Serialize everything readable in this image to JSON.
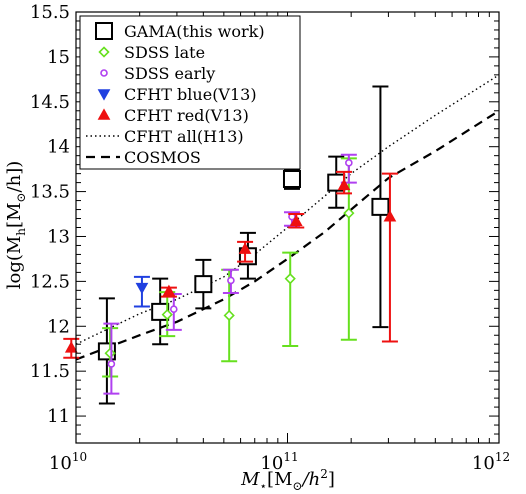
{
  "chart_data": {
    "type": "scatter",
    "xlabel_main": "M",
    "xlabel_sub": "⋆",
    "xlabel_unit_pre": "[M",
    "xlabel_unit_sub": "⊙",
    "xlabel_unit_mid": "/h",
    "xlabel_unit_sup": "2",
    "xlabel_unit_post": "]",
    "ylabel_pre": "log(M",
    "ylabel_sub": "h",
    "ylabel_unit_pre": "[M",
    "ylabel_unit_sub": "⊙",
    "ylabel_unit_post": "/h])",
    "x_scale": "log",
    "xlim": [
      10000000000.0,
      1000000000000.0
    ],
    "ylim": [
      10.7,
      15.5
    ],
    "x_ticks": [
      {
        "value": 10000000000.0,
        "base": "10",
        "exp": "10"
      },
      {
        "value": 100000000000.0,
        "base": "10",
        "exp": "11"
      },
      {
        "value": 1000000000000.0,
        "base": "10",
        "exp": "12"
      }
    ],
    "y_ticks": [
      "11",
      "11.5",
      "12",
      "12.5",
      "13",
      "13.5",
      "14",
      "14.5",
      "15",
      "15.5"
    ],
    "legend_position": "top-left",
    "series": [
      {
        "name": "GAMA(this work)",
        "marker": "square",
        "color": "#000000",
        "points": [
          {
            "x": 14000000000.0,
            "y": 11.72,
            "ylo": 11.14,
            "yhi": 12.31
          },
          {
            "x": 25000000000.0,
            "y": 12.16,
            "ylo": 11.8,
            "yhi": 12.53
          },
          {
            "x": 40000000000.0,
            "y": 12.47,
            "ylo": 12.2,
            "yhi": 12.74
          },
          {
            "x": 65000000000.0,
            "y": 12.78,
            "ylo": 12.53,
            "yhi": 13.04
          },
          {
            "x": 105000000000.0,
            "y": 13.64,
            "ylo": 13.53,
            "yhi": 13.75
          },
          {
            "x": 170000000000.0,
            "y": 13.6,
            "ylo": 13.32,
            "yhi": 13.89
          },
          {
            "x": 275000000000.0,
            "y": 13.33,
            "ylo": 11.99,
            "yhi": 14.67
          }
        ]
      },
      {
        "name": "SDSS late",
        "marker": "diamond",
        "color": "#66e01e",
        "points": [
          {
            "x": 14500000000.0,
            "y": 11.7,
            "ylo": 11.44,
            "yhi": 11.98
          },
          {
            "x": 27000000000.0,
            "y": 12.13,
            "ylo": 11.89,
            "yhi": 12.38
          },
          {
            "x": 53000000000.0,
            "y": 12.12,
            "ylo": 11.61,
            "yhi": 12.63
          },
          {
            "x": 103000000000.0,
            "y": 12.53,
            "ylo": 11.78,
            "yhi": 12.82
          },
          {
            "x": 195000000000.0,
            "y": 13.26,
            "ylo": 11.85,
            "yhi": 13.87
          }
        ]
      },
      {
        "name": "SDSS early",
        "marker": "circle",
        "color": "#b040f0",
        "points": [
          {
            "x": 14700000000.0,
            "y": 11.58,
            "ylo": 11.25,
            "yhi": 12.03
          },
          {
            "x": 29000000000.0,
            "y": 12.19,
            "ylo": 11.96,
            "yhi": 12.36
          },
          {
            "x": 54000000000.0,
            "y": 12.51,
            "ylo": 12.37,
            "yhi": 12.63
          },
          {
            "x": 105000000000.0,
            "y": 13.22,
            "ylo": 13.12,
            "yhi": 13.27
          },
          {
            "x": 195000000000.0,
            "y": 13.82,
            "ylo": 13.6,
            "yhi": 13.91
          }
        ]
      },
      {
        "name": "CFHT blue(V13)",
        "marker": "triangle-down",
        "color": "#2040e0",
        "points": [
          {
            "x": 20500000000.0,
            "y": 12.43,
            "ylo": 12.22,
            "yhi": 12.55
          }
        ]
      },
      {
        "name": "CFHT red(V13)",
        "marker": "triangle-up",
        "color": "#ee1010",
        "points": [
          {
            "x": 9500000000.0,
            "y": 11.76,
            "ylo": 11.65,
            "yhi": 11.86
          },
          {
            "x": 27500000000.0,
            "y": 12.39,
            "ylo": 12.33,
            "yhi": 12.43
          },
          {
            "x": 63000000000.0,
            "y": 12.86,
            "ylo": 12.72,
            "yhi": 12.94
          },
          {
            "x": 110000000000.0,
            "y": 13.17,
            "ylo": 13.1,
            "yhi": 13.25
          },
          {
            "x": 185000000000.0,
            "y": 13.57,
            "ylo": 13.48,
            "yhi": 13.72
          },
          {
            "x": 305000000000.0,
            "y": 13.22,
            "ylo": 11.83,
            "yhi": 13.7
          }
        ]
      },
      {
        "name": "CFHT all(H13)",
        "line": "dotted",
        "color": "#000000",
        "points": [
          {
            "x": 10000000000.0,
            "y": 11.8
          },
          {
            "x": 20000000000.0,
            "y": 12.14
          },
          {
            "x": 30000000000.0,
            "y": 12.3
          },
          {
            "x": 50000000000.0,
            "y": 12.55
          },
          {
            "x": 70000000000.0,
            "y": 12.8
          },
          {
            "x": 100000000000.0,
            "y": 13.1
          },
          {
            "x": 150000000000.0,
            "y": 13.45
          },
          {
            "x": 200000000000.0,
            "y": 13.7
          },
          {
            "x": 300000000000.0,
            "y": 14.0
          },
          {
            "x": 500000000000.0,
            "y": 14.35
          },
          {
            "x": 1000000000000.0,
            "y": 14.8
          }
        ]
      },
      {
        "name": "COSMOS",
        "line": "dashed",
        "color": "#000000",
        "points": [
          {
            "x": 10000000000.0,
            "y": 11.63
          },
          {
            "x": 20000000000.0,
            "y": 11.9
          },
          {
            "x": 30000000000.0,
            "y": 12.05
          },
          {
            "x": 50000000000.0,
            "y": 12.3
          },
          {
            "x": 70000000000.0,
            "y": 12.5
          },
          {
            "x": 100000000000.0,
            "y": 12.75
          },
          {
            "x": 150000000000.0,
            "y": 13.05
          },
          {
            "x": 200000000000.0,
            "y": 13.3
          },
          {
            "x": 300000000000.0,
            "y": 13.65
          },
          {
            "x": 500000000000.0,
            "y": 13.95
          },
          {
            "x": 1000000000000.0,
            "y": 14.4
          }
        ]
      }
    ]
  }
}
